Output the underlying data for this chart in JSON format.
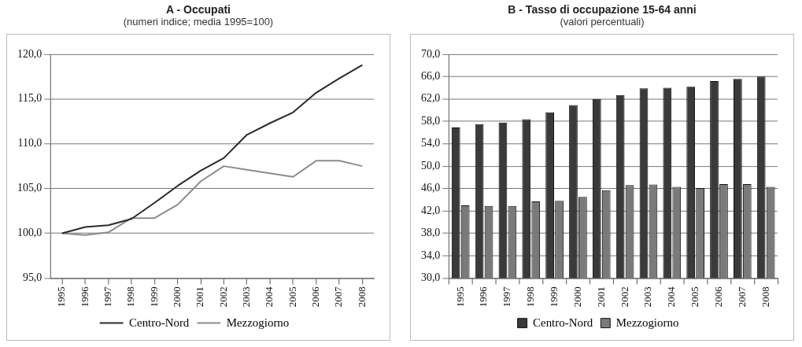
{
  "chart_data": [
    {
      "type": "line",
      "title": "A - Occupati",
      "subtitle": "(numeri indice; media 1995=100)",
      "categories": [
        "1995",
        "1996",
        "1997",
        "1998",
        "1999",
        "2000",
        "2001",
        "2002",
        "2003",
        "2004",
        "2005",
        "2006",
        "2007",
        "2008"
      ],
      "series": [
        {
          "name": "Centro-Nord",
          "color": "#2a2a2a",
          "values": [
            100,
            100.7,
            100.9,
            101.6,
            103.4,
            105.3,
            107.0,
            108.4,
            111.0,
            112.3,
            113.5,
            115.7,
            117.3,
            118.8
          ]
        },
        {
          "name": "Mezzogiorno",
          "color": "#8c8c8c",
          "values": [
            100,
            99.8,
            100.1,
            101.7,
            101.7,
            103.2,
            105.8,
            107.5,
            107.1,
            106.7,
            106.3,
            108.1,
            108.1,
            107.5
          ]
        }
      ],
      "ylim": [
        95,
        120
      ],
      "yticks": [
        {
          "value": 95,
          "label": "95,0"
        },
        {
          "value": 100,
          "label": "100,0"
        },
        {
          "value": 105,
          "label": "105,0"
        },
        {
          "value": 110,
          "label": "110,0"
        },
        {
          "value": 115,
          "label": "115,0"
        },
        {
          "value": 120,
          "label": "120,0"
        }
      ],
      "grid": "y",
      "legend": "bottom",
      "marker": "none",
      "line_style": "solid"
    },
    {
      "type": "bar",
      "title": "B - Tasso di occupazione 15-64 anni",
      "subtitle": "(valori percentuali)",
      "categories": [
        "1995",
        "1996",
        "1997",
        "1998",
        "1999",
        "2000",
        "2001",
        "2002",
        "2003",
        "2004",
        "2005",
        "2006",
        "2007",
        "2008"
      ],
      "series": [
        {
          "name": "Centro-Nord",
          "color": "#3a3a3a",
          "values": [
            56.9,
            57.5,
            57.8,
            58.4,
            59.6,
            60.9,
            62.0,
            62.7,
            63.9,
            64.0,
            64.2,
            65.2,
            65.6,
            66.0
          ]
        },
        {
          "name": "Mezzogiorno",
          "color": "#7a7a7a",
          "values": [
            43.0,
            42.9,
            42.9,
            43.7,
            43.8,
            44.5,
            45.7,
            46.6,
            46.7,
            46.3,
            46.1,
            46.8,
            46.8,
            46.3
          ]
        }
      ],
      "ylim": [
        30,
        70
      ],
      "yticks": [
        {
          "value": 30,
          "label": "30,0"
        },
        {
          "value": 34,
          "label": "34,0"
        },
        {
          "value": 38,
          "label": "38,0"
        },
        {
          "value": 42,
          "label": "42,0"
        },
        {
          "value": 46,
          "label": "46,0"
        },
        {
          "value": 50,
          "label": "50,0"
        },
        {
          "value": 54,
          "label": "54,0"
        },
        {
          "value": 58,
          "label": "58,0"
        },
        {
          "value": 62,
          "label": "62,0"
        },
        {
          "value": 66,
          "label": "66,0"
        },
        {
          "value": 70,
          "label": "70,0"
        }
      ],
      "grid": "y",
      "legend": "bottom"
    }
  ]
}
